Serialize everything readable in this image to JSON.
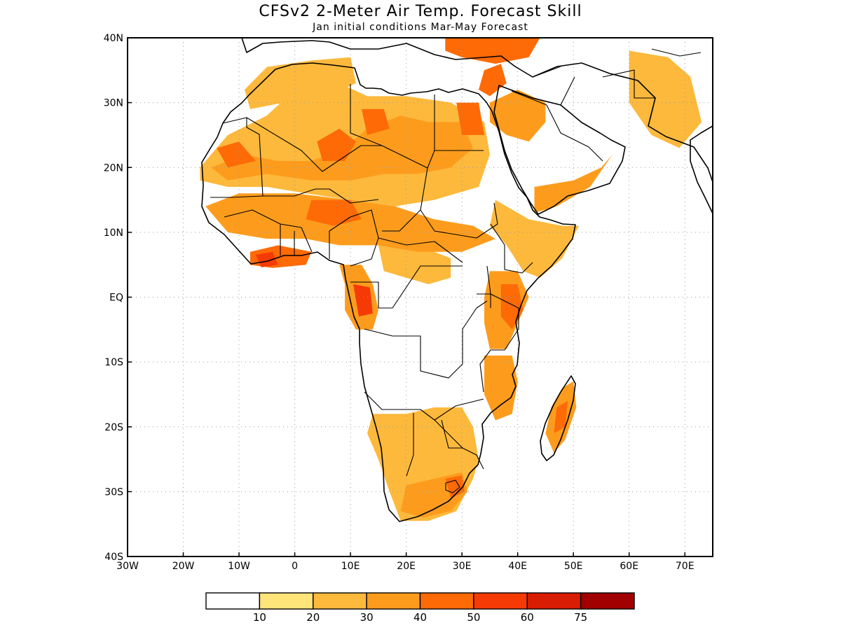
{
  "title": "CFSv2 2-Meter Air Temp. Forecast Skill",
  "subtitle": "Jan initial conditions  Mar-May Forecast",
  "chart_data": {
    "type": "heatmap",
    "title": "CFSv2 2-Meter Air Temp. Forecast Skill",
    "subtitle": "Jan initial conditions  Mar-May Forecast",
    "x_axis": {
      "range": [
        -30,
        75
      ],
      "ticks": [
        {
          "value": -30,
          "label": "30W"
        },
        {
          "value": -20,
          "label": "20W"
        },
        {
          "value": -10,
          "label": "10W"
        },
        {
          "value": 0,
          "label": "0"
        },
        {
          "value": 10,
          "label": "10E"
        },
        {
          "value": 20,
          "label": "20E"
        },
        {
          "value": 30,
          "label": "30E"
        },
        {
          "value": 40,
          "label": "40E"
        },
        {
          "value": 50,
          "label": "50E"
        },
        {
          "value": 60,
          "label": "60E"
        },
        {
          "value": 70,
          "label": "70E"
        }
      ]
    },
    "y_axis": {
      "range": [
        -40,
        40
      ],
      "ticks": [
        {
          "value": 40,
          "label": "40N"
        },
        {
          "value": 30,
          "label": "30N"
        },
        {
          "value": 20,
          "label": "20N"
        },
        {
          "value": 10,
          "label": "10N"
        },
        {
          "value": 0,
          "label": "EQ"
        },
        {
          "value": -10,
          "label": "10S"
        },
        {
          "value": -20,
          "label": "20S"
        },
        {
          "value": -30,
          "label": "30S"
        },
        {
          "value": -40,
          "label": "40S"
        }
      ]
    },
    "grid": true,
    "colorbar": {
      "placement": "bottom",
      "bins": [
        {
          "color": "#ffffff"
        },
        {
          "color": "#ffe47a"
        },
        {
          "color": "#fdb93c"
        },
        {
          "color": "#fd9c1c"
        },
        {
          "color": "#fd6a06"
        },
        {
          "color": "#f53a06"
        },
        {
          "color": "#d91c04"
        },
        {
          "color": "#a00000"
        }
      ],
      "labels": [
        "10",
        "20",
        "30",
        "40",
        "50",
        "60",
        "75"
      ]
    },
    "regions": [
      {
        "name": "sahara-west",
        "level": 2,
        "polygon": [
          [
            -17,
            20
          ],
          [
            -12,
            25
          ],
          [
            -5,
            28
          ],
          [
            0,
            32
          ],
          [
            8,
            33
          ],
          [
            13,
            31
          ],
          [
            20,
            31
          ],
          [
            28,
            30
          ],
          [
            34,
            27
          ],
          [
            35,
            22
          ],
          [
            33,
            17
          ],
          [
            25,
            15
          ],
          [
            18,
            14
          ],
          [
            10,
            15
          ],
          [
            2,
            16
          ],
          [
            -5,
            17
          ],
          [
            -12,
            17
          ],
          [
            -17,
            18
          ]
        ]
      },
      {
        "name": "sahara-core",
        "level": 3,
        "polygon": [
          [
            -15,
            20
          ],
          [
            -9,
            22
          ],
          [
            -3,
            21
          ],
          [
            3,
            21
          ],
          [
            9,
            23
          ],
          [
            13,
            26
          ],
          [
            19,
            28
          ],
          [
            24,
            27
          ],
          [
            30,
            27
          ],
          [
            32,
            23
          ],
          [
            28,
            20
          ],
          [
            22,
            19
          ],
          [
            16,
            19
          ],
          [
            10,
            18
          ],
          [
            3,
            18
          ],
          [
            -5,
            19
          ],
          [
            -12,
            18
          ]
        ]
      },
      {
        "name": "sahara-hot-1",
        "level": 4,
        "polygon": [
          [
            4,
            24
          ],
          [
            8,
            26
          ],
          [
            11,
            24
          ],
          [
            9,
            21
          ],
          [
            5,
            21
          ]
        ]
      },
      {
        "name": "sahara-hot-2",
        "level": 4,
        "polygon": [
          [
            12,
            29
          ],
          [
            16,
            29
          ],
          [
            17,
            26
          ],
          [
            13,
            25
          ]
        ]
      },
      {
        "name": "sahara-hot-3",
        "level": 4,
        "polygon": [
          [
            -14,
            23
          ],
          [
            -10,
            24
          ],
          [
            -7,
            21
          ],
          [
            -12,
            20
          ]
        ]
      },
      {
        "name": "sahara-hot-4",
        "level": 4,
        "polygon": [
          [
            29,
            30
          ],
          [
            33,
            30
          ],
          [
            34,
            25
          ],
          [
            30,
            25
          ]
        ]
      },
      {
        "name": "sahel-band",
        "level": 3,
        "polygon": [
          [
            -16,
            14
          ],
          [
            -10,
            16
          ],
          [
            0,
            16
          ],
          [
            10,
            15
          ],
          [
            18,
            14
          ],
          [
            25,
            12
          ],
          [
            32,
            11
          ],
          [
            36,
            9
          ],
          [
            30,
            7
          ],
          [
            22,
            7
          ],
          [
            15,
            8
          ],
          [
            8,
            8
          ],
          [
            2,
            9
          ],
          [
            -5,
            9
          ],
          [
            -12,
            10
          ]
        ]
      },
      {
        "name": "sahel-warm",
        "level": 4,
        "polygon": [
          [
            3,
            15
          ],
          [
            10,
            15
          ],
          [
            12,
            12
          ],
          [
            7,
            11
          ],
          [
            2,
            12
          ]
        ]
      },
      {
        "name": "gulf-guinea",
        "level": 4,
        "polygon": [
          [
            -8,
            7
          ],
          [
            -3,
            8
          ],
          [
            3,
            7
          ],
          [
            2,
            5
          ],
          [
            -4,
            4.5
          ],
          [
            -8,
            5
          ]
        ]
      },
      {
        "name": "gulf-guinea-hot",
        "level": 5,
        "polygon": [
          [
            -7,
            6.5
          ],
          [
            -4,
            7
          ],
          [
            -3,
            5
          ],
          [
            -6,
            4.6
          ]
        ]
      },
      {
        "name": "congo-west",
        "level": 3,
        "polygon": [
          [
            8,
            5
          ],
          [
            12,
            5
          ],
          [
            14,
            2
          ],
          [
            15,
            -2
          ],
          [
            14,
            -5
          ],
          [
            11,
            -5
          ],
          [
            9,
            -2
          ],
          [
            9,
            2
          ]
        ]
      },
      {
        "name": "congo-hot",
        "level": 5,
        "polygon": [
          [
            10.5,
            2
          ],
          [
            13.5,
            1.5
          ],
          [
            14,
            -2.5
          ],
          [
            11.5,
            -3
          ]
        ]
      },
      {
        "name": "central-band",
        "level": 2,
        "polygon": [
          [
            15,
            8
          ],
          [
            22,
            8
          ],
          [
            28,
            6
          ],
          [
            28,
            3
          ],
          [
            24,
            2
          ],
          [
            20,
            3
          ],
          [
            16,
            4
          ]
        ]
      },
      {
        "name": "east-africa",
        "level": 3,
        "polygon": [
          [
            35,
            4
          ],
          [
            40,
            4
          ],
          [
            42,
            0
          ],
          [
            40,
            -4
          ],
          [
            38,
            -8
          ],
          [
            35,
            -8
          ],
          [
            34,
            -4
          ],
          [
            34,
            0
          ]
        ]
      },
      {
        "name": "east-coast",
        "level": 4,
        "polygon": [
          [
            37,
            2
          ],
          [
            40,
            2
          ],
          [
            41,
            -2
          ],
          [
            39,
            -5
          ],
          [
            37,
            -3
          ]
        ]
      },
      {
        "name": "horn",
        "level": 2,
        "polygon": [
          [
            36,
            15
          ],
          [
            42,
            12
          ],
          [
            48,
            11
          ],
          [
            51,
            11
          ],
          [
            48,
            6
          ],
          [
            44,
            3
          ],
          [
            41,
            4
          ],
          [
            38,
            8
          ],
          [
            35,
            11
          ]
        ]
      },
      {
        "name": "tanzania-moz",
        "level": 3,
        "polygon": [
          [
            34,
            -9
          ],
          [
            39,
            -9
          ],
          [
            40,
            -13
          ],
          [
            39,
            -18
          ],
          [
            36,
            -19
          ],
          [
            34,
            -15
          ]
        ]
      },
      {
        "name": "southern-plateau",
        "level": 2,
        "polygon": [
          [
            14,
            -18
          ],
          [
            20,
            -18
          ],
          [
            25,
            -17
          ],
          [
            30,
            -17
          ],
          [
            32,
            -20
          ],
          [
            33,
            -25
          ],
          [
            32,
            -28
          ],
          [
            29,
            -33
          ],
          [
            24,
            -34.5
          ],
          [
            19,
            -34.5
          ],
          [
            17,
            -30
          ],
          [
            15,
            -25
          ],
          [
            13,
            -21
          ]
        ]
      },
      {
        "name": "southern-warm",
        "level": 3,
        "polygon": [
          [
            20,
            -29
          ],
          [
            25,
            -28
          ],
          [
            30,
            -27
          ],
          [
            31,
            -30
          ],
          [
            28,
            -33
          ],
          [
            23,
            -34
          ],
          [
            19,
            -33
          ]
        ]
      },
      {
        "name": "lesotho-hot",
        "level": 4,
        "polygon": [
          [
            27,
            -28
          ],
          [
            30,
            -27.5
          ],
          [
            30.5,
            -30
          ],
          [
            28,
            -31
          ]
        ]
      },
      {
        "name": "madagascar",
        "level": 3,
        "polygon": [
          [
            48,
            -14
          ],
          [
            50,
            -13
          ],
          [
            50.5,
            -17
          ],
          [
            48.5,
            -22
          ],
          [
            46.5,
            -24
          ],
          [
            45,
            -21
          ],
          [
            46,
            -17
          ]
        ]
      },
      {
        "name": "madagascar-hot",
        "level": 4,
        "polygon": [
          [
            47,
            -17
          ],
          [
            49,
            -16
          ],
          [
            48.5,
            -20
          ],
          [
            46.5,
            -21
          ]
        ]
      },
      {
        "name": "arabia-west",
        "level": 3,
        "polygon": [
          [
            35,
            30
          ],
          [
            40,
            32
          ],
          [
            45,
            30
          ],
          [
            45,
            27
          ],
          [
            42,
            24
          ],
          [
            38,
            25
          ],
          [
            35,
            27
          ]
        ]
      },
      {
        "name": "arabia-south",
        "level": 3,
        "polygon": [
          [
            43,
            17
          ],
          [
            50,
            18
          ],
          [
            55,
            20
          ],
          [
            57,
            22
          ],
          [
            53,
            17
          ],
          [
            47,
            14
          ],
          [
            43,
            13
          ]
        ]
      },
      {
        "name": "levant-hot",
        "level": 4,
        "polygon": [
          [
            34,
            35
          ],
          [
            37,
            36
          ],
          [
            38,
            33
          ],
          [
            35,
            31
          ],
          [
            33,
            32
          ]
        ]
      },
      {
        "name": "turkey-med",
        "level": 4,
        "polygon": [
          [
            27,
            40
          ],
          [
            44,
            40
          ],
          [
            42,
            37
          ],
          [
            36,
            36
          ],
          [
            30,
            37
          ],
          [
            27,
            38
          ]
        ]
      },
      {
        "name": "iran-india",
        "level": 2,
        "polygon": [
          [
            60,
            38
          ],
          [
            67,
            37
          ],
          [
            71,
            34
          ],
          [
            73,
            27
          ],
          [
            69,
            23
          ],
          [
            64,
            25
          ],
          [
            60,
            30
          ]
        ]
      },
      {
        "name": "maghreb",
        "level": 2,
        "polygon": [
          [
            -9,
            32
          ],
          [
            -5,
            35.5
          ],
          [
            3,
            36.5
          ],
          [
            10,
            37
          ],
          [
            11,
            33
          ],
          [
            6,
            31
          ],
          [
            -2,
            30
          ],
          [
            -8,
            29
          ]
        ]
      }
    ]
  }
}
